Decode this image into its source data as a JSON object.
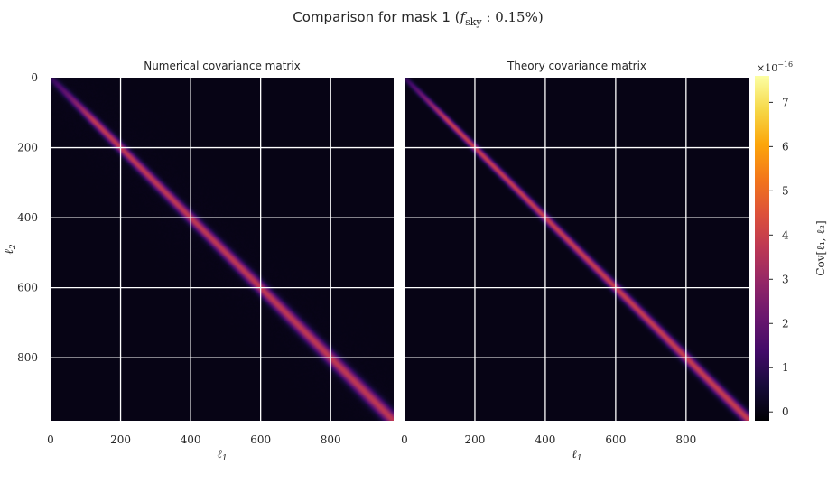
{
  "chart_data": {
    "type": "heatmap",
    "suptitle_prefix": "Comparison for mask 1 (",
    "suptitle_fsky": "f",
    "suptitle_sub": "sky",
    "suptitle_suffix": " : 0.15%)",
    "panels": [
      {
        "title": "Numerical covariance matrix",
        "xlabel": "ℓ",
        "xlabel_sub": "1",
        "ylabel": "ℓ",
        "ylabel_sub": "2",
        "xticks": [
          "0",
          "200",
          "400",
          "600",
          "800"
        ],
        "yticks": [
          "0",
          "200",
          "400",
          "600",
          "800"
        ],
        "xlim": [
          0,
          980
        ],
        "ylim": [
          0,
          980
        ],
        "band_peak": 3.6,
        "band_width": 14,
        "noise": true
      },
      {
        "title": "Theory covariance matrix",
        "xlabel": "ℓ",
        "xlabel_sub": "1",
        "xticks": [
          "0",
          "200",
          "400",
          "600",
          "800"
        ],
        "xlim": [
          0,
          980
        ],
        "ylim": [
          0,
          980
        ],
        "band_peak": 3.8,
        "band_width": 11,
        "noise": false
      }
    ],
    "grid": true,
    "grid_values": [
      200,
      400,
      600,
      800
    ],
    "colorbar": {
      "label": "Cov[ℓ₁, ℓ₂]",
      "multiplier": "×10",
      "multiplier_exp": "−16",
      "ticks": [
        "0",
        "1",
        "2",
        "3",
        "4",
        "5",
        "6",
        "7"
      ],
      "tick_values": [
        0,
        1,
        2,
        3,
        4,
        5,
        6,
        7
      ],
      "range": [
        -0.2,
        7.6
      ],
      "colormap": "inferno"
    }
  }
}
